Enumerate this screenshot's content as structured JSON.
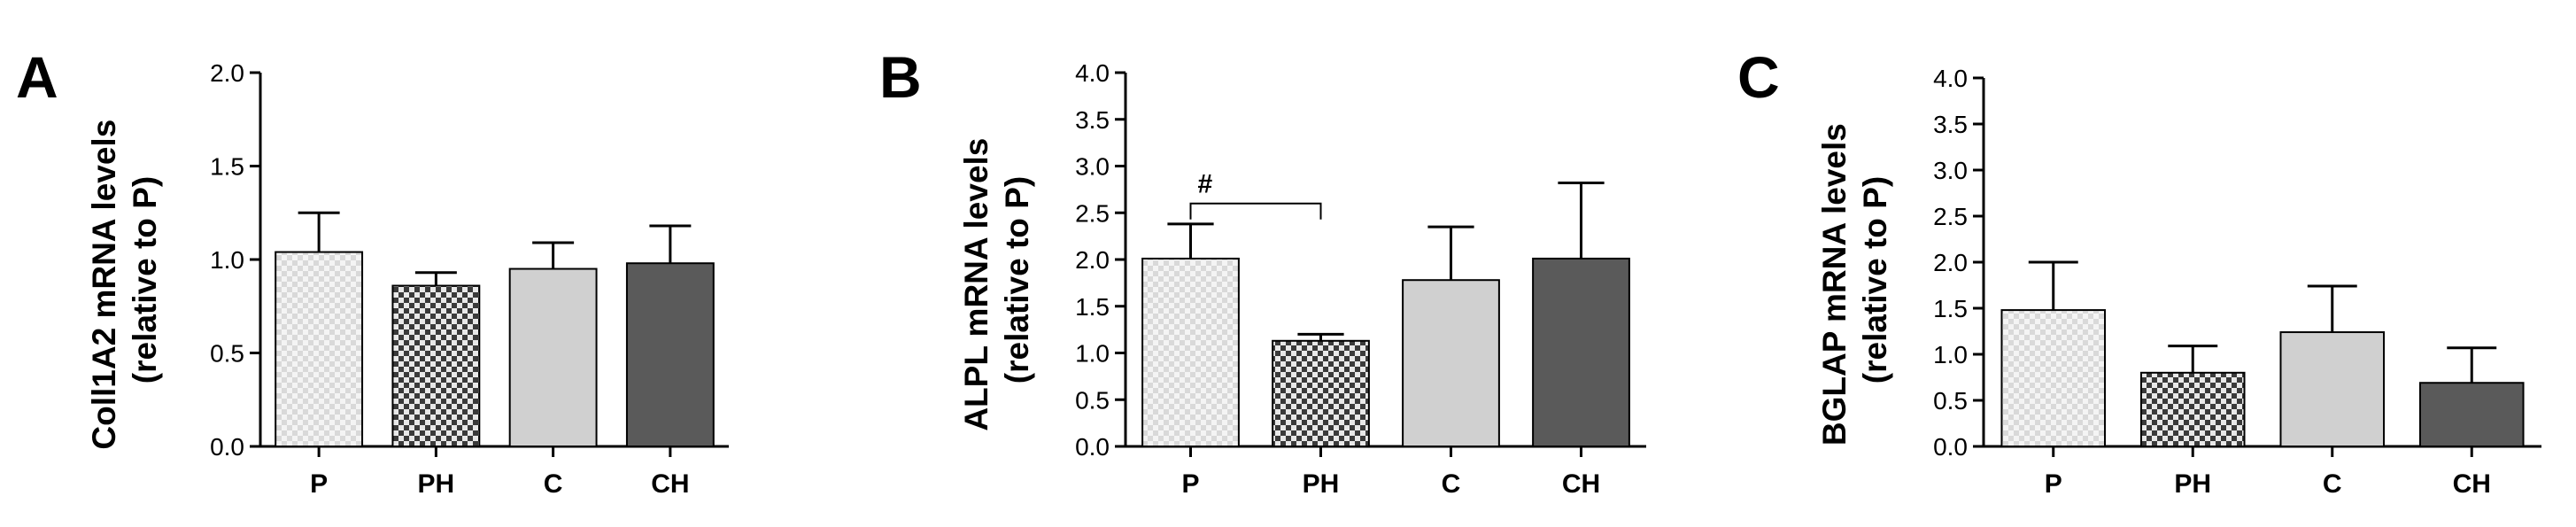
{
  "chart_data": [
    {
      "type": "bar",
      "panel": "A",
      "ylabel": [
        "Coll1A2 mRNA levels",
        "(relative to P)"
      ],
      "ylim": [
        0,
        2.0
      ],
      "yticks": [
        0.0,
        0.5,
        1.0,
        1.5,
        2.0
      ],
      "ytick_labels": [
        "0.0",
        "0.5",
        "1.0",
        "1.5",
        "2.0"
      ],
      "categories": [
        "P",
        "PH",
        "C",
        "CH"
      ],
      "values": [
        1.04,
        0.86,
        0.95,
        0.98
      ],
      "errors": [
        0.21,
        0.07,
        0.14,
        0.2
      ],
      "fills": [
        "light-check",
        "dark-check",
        "#d0d0d0",
        "#5a5a5a"
      ],
      "annotations": []
    },
    {
      "type": "bar",
      "panel": "B",
      "ylabel": [
        "ALPL mRNA levels",
        "(relative to P)"
      ],
      "ylim": [
        0,
        4.0
      ],
      "yticks": [
        0.0,
        0.5,
        1.0,
        1.5,
        2.0,
        2.5,
        3.0,
        3.5,
        4.0
      ],
      "ytick_labels": [
        "0.0",
        "0.5",
        "1.0",
        "1.5",
        "2.0",
        "2.5",
        "3.0",
        "3.5",
        "4.0"
      ],
      "categories": [
        "P",
        "PH",
        "C",
        "CH"
      ],
      "values": [
        2.01,
        1.13,
        1.78,
        2.01
      ],
      "errors": [
        0.37,
        0.07,
        0.57,
        0.81
      ],
      "fills": [
        "light-check",
        "dark-check",
        "#d0d0d0",
        "#5a5a5a"
      ],
      "annotations": [
        {
          "text": "#",
          "from": "P",
          "to": "PH",
          "y": 2.6
        }
      ]
    },
    {
      "type": "bar",
      "panel": "C",
      "ylabel": [
        "BGLAP mRNA levels",
        "(relative to P)"
      ],
      "ylim": [
        0,
        4.0
      ],
      "yticks": [
        0.0,
        0.5,
        1.0,
        1.5,
        2.0,
        2.5,
        3.0,
        3.5,
        4.0
      ],
      "ytick_labels": [
        "0.0",
        "0.5",
        "1.0",
        "1.5",
        "2.0",
        "2.5",
        "3.0",
        "3.5",
        "4.0"
      ],
      "categories": [
        "P",
        "PH",
        "C",
        "CH"
      ],
      "values": [
        1.48,
        0.8,
        1.24,
        0.69
      ],
      "errors": [
        0.52,
        0.29,
        0.5,
        0.38
      ],
      "fills": [
        "light-check",
        "dark-check",
        "#d0d0d0",
        "#5a5a5a"
      ],
      "annotations": []
    }
  ]
}
